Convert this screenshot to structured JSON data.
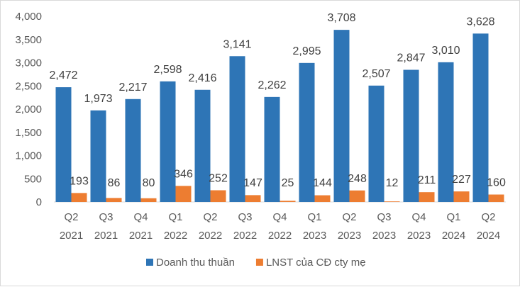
{
  "chart_data": {
    "type": "bar",
    "categories": [
      [
        "Q2",
        "2021"
      ],
      [
        "Q3",
        "2021"
      ],
      [
        "Q4",
        "2021"
      ],
      [
        "Q1",
        "2022"
      ],
      [
        "Q2",
        "2022"
      ],
      [
        "Q3",
        "2022"
      ],
      [
        "Q4",
        "2022"
      ],
      [
        "Q1",
        "2023"
      ],
      [
        "Q2",
        "2023"
      ],
      [
        "Q3",
        "2023"
      ],
      [
        "Q4",
        "2023"
      ],
      [
        "Q1",
        "2024"
      ],
      [
        "Q2",
        "2024"
      ]
    ],
    "series": [
      {
        "name": "Doanh thu thuần",
        "color": "#2e75b6",
        "values": [
          2472,
          1973,
          2217,
          2598,
          2416,
          3141,
          2262,
          2995,
          3708,
          2507,
          2847,
          3010,
          3628
        ],
        "value_labels": [
          "2,472",
          "1,973",
          "2,217",
          "2,598",
          "2,416",
          "3,141",
          "2,262",
          "2,995",
          "3,708",
          "2,507",
          "2,847",
          "3,010",
          "3,628"
        ]
      },
      {
        "name": "LNST của CĐ cty mẹ",
        "color": "#ed7d31",
        "values": [
          193,
          86,
          80,
          346,
          252,
          147,
          25,
          144,
          248,
          12,
          211,
          227,
          160
        ],
        "value_labels": [
          "193",
          "86",
          "80",
          "346",
          "252",
          "147",
          "25",
          "144",
          "248",
          "12",
          "211",
          "227",
          "160"
        ]
      }
    ],
    "ylim": [
      0,
      4000
    ],
    "yticks": [
      0,
      500,
      1000,
      1500,
      2000,
      2500,
      3000,
      3500,
      4000
    ],
    "ytick_labels": [
      "0",
      "500",
      "1,000",
      "1,500",
      "2,000",
      "2,500",
      "3,000",
      "3,500",
      "4,000"
    ],
    "grid": false,
    "legend_position": "bottom"
  }
}
